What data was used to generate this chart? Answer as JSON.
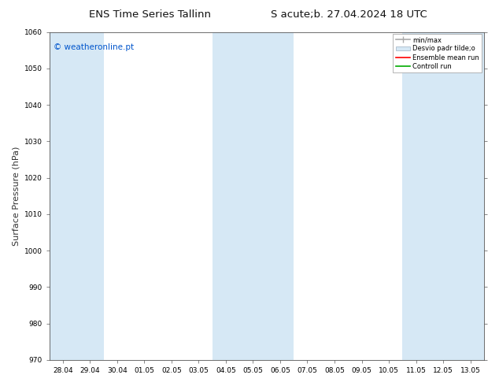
{
  "title_left": "ENS Time Series Tallinn",
  "title_right": "S acute;b. 27.04.2024 18 UTC",
  "ylabel": "Surface Pressure (hPa)",
  "ylim": [
    970,
    1060
  ],
  "yticks": [
    970,
    980,
    990,
    1000,
    1010,
    1020,
    1030,
    1040,
    1050,
    1060
  ],
  "xtick_labels": [
    "28.04",
    "29.04",
    "30.04",
    "01.05",
    "02.05",
    "03.05",
    "04.05",
    "05.05",
    "06.05",
    "07.05",
    "08.05",
    "09.05",
    "10.05",
    "11.05",
    "12.05",
    "13.05"
  ],
  "shaded_ranges": [
    [
      0,
      1
    ],
    [
      6,
      8
    ],
    [
      13,
      15
    ]
  ],
  "background_color": "#ffffff",
  "plot_bg_color": "#ffffff",
  "shaded_color": "#d6e8f5",
  "watermark": "© weatheronline.pt",
  "watermark_color": "#0055cc",
  "legend_entries": [
    "min/max",
    "Desvio padr tilde;o",
    "Ensemble mean run",
    "Controll run"
  ],
  "minmax_color": "#aaaaaa",
  "desvio_color": "#d6e8f5",
  "desvio_edge": "#aabbcc",
  "ensemble_color": "#ff0000",
  "control_color": "#00aa00",
  "tick_fontsize": 6.5,
  "label_fontsize": 8,
  "title_fontsize": 9.5
}
